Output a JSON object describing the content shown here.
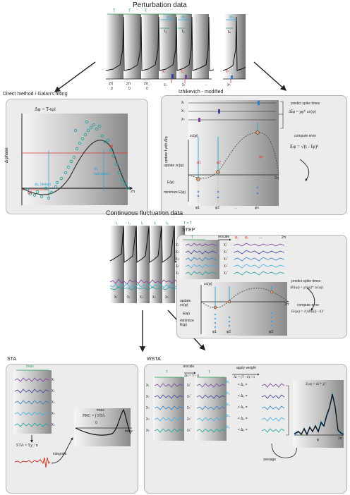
{
  "sections": {
    "perturbation_title": "Perturbation data",
    "direct_title": "Direct method / Galan's fitting",
    "izhikevich_title": "Izhikevich - modified",
    "continuous_title": "Continuous fluctuation data",
    "step_title": "STEP",
    "sta_title": "STA",
    "wsta_title": "WSTA"
  },
  "perturbation": {
    "period_labels": [
      "T",
      "T",
      "T"
    ],
    "spike_times": [
      "t₁",
      "t₂",
      "tₙ"
    ],
    "stim_labels": [
      "χ₁",
      "χ₂",
      "χₙ"
    ],
    "delta_labels": [
      "Δt₁",
      "Δt₂",
      "Δtₙ"
    ],
    "two_pi": "2π",
    "zero": "0",
    "ellipsis": "..."
  },
  "direct": {
    "y_axis": "Δ phase",
    "formula": "Δφ = T-tφi",
    "phi_i": "φi",
    "phi_1": "φ1",
    "advance": "Δtᵢ",
    "advance_label": "(advance)",
    "delay": "Δt₁ (delay)",
    "x_end": "2π"
  },
  "izhikevich": {
    "side_label": "update t̃ with Δt̃φ",
    "stims": [
      "χ₁",
      "χ₂",
      "χₙ"
    ],
    "zc": "zc(φ)",
    "predict_title": "predict spike times",
    "predict_formula": "Δt̃φ = χφ* zc(φ)",
    "compute_error": "compute error",
    "error_formula": "Eφ = √(t - t̃φ)²",
    "update_zc": "update zc(φ)",
    "E_label": "E(φ)",
    "minimize": "minimize E(φ)",
    "phis": [
      "φ1",
      "φ2",
      "..",
      "φn"
    ],
    "x_end": "2π"
  },
  "continuous": {
    "t_labels": [
      "t₁",
      "t₂",
      "t₃",
      "t₄",
      "t₅"
    ],
    "period_eq": "T = T̄",
    "stim_labels": [
      "χ₁",
      "χ₂",
      "χ₃",
      "χ₄",
      "χ₅"
    ]
  },
  "step": {
    "T": "T",
    "rescale": "rescale",
    "phis_top": [
      "φ₁",
      "φ₂",
      "...",
      "2π"
    ],
    "stims": [
      "χ₁",
      "χ₂",
      "χ₃",
      "χ₄",
      "χ₅"
    ],
    "stims_r": [
      "χ₁'",
      "χ₂'",
      "χ₃'",
      "χ₄'",
      "χ₅'"
    ],
    "zc": "zc(φ)",
    "update": "update zc(φ)",
    "E_label": "E(φ)",
    "minimize": "minimize E(φ)",
    "predict": "predict spike times",
    "predict_formula": "Δt̃i(φj) = χi'(φj)* zc(φj)",
    "compute_error": "compute error",
    "error_formula": "Ei(φj) = √(Δt̃i(φj) - ti)²",
    "phis": [
      "φ1",
      "φ2",
      "φ3"
    ],
    "x_end": "2π"
  },
  "sta": {
    "tmax": "tmax",
    "stims": [
      "χ₁",
      "χ₂",
      "χ₃",
      "χ₄",
      "χ₅"
    ],
    "sta_formula": "STA = Σχ / n",
    "integrate": "integrate",
    "prc_formula": "PRC = ∫ STA",
    "prc_upper": "tmax",
    "prc_lower": "0",
    "x_end": "tmax"
  },
  "wsta": {
    "T": "T",
    "rescale": "rescale",
    "rescale_formula": "Δti = T - ti",
    "apply_weight": "apply weight",
    "weight_formula": "Δi = (T - ti) / ti",
    "stims": [
      "χ₁",
      "χ₂",
      "χ₃",
      "χ₄",
      "χ₅"
    ],
    "stims_r": [
      "χ₁'",
      "χ₂'",
      "χ₃'",
      "χ₄'",
      "χ₅'"
    ],
    "deltas": [
      "× Δ₁ =",
      "× Δ₂ =",
      "× Δ₃ =",
      "× Δ₄ =",
      "× Δ₅ ="
    ],
    "dts": [
      "Δt₁",
      "Δt₂",
      "Δt₃",
      "Δt₄",
      "Δt₅"
    ],
    "Z_formula": "Z(φ) = Δi * χi'",
    "average": "average",
    "phi": "φ",
    "x_end": "2π"
  },
  "colors": {
    "purple": "#7b3fa0",
    "indigo": "#3b3f9e",
    "blue": "#2f7fc8",
    "lightblue": "#3bb0e0",
    "teal": "#18a39a",
    "red": "#d9372b",
    "green": "#2ca05a"
  }
}
